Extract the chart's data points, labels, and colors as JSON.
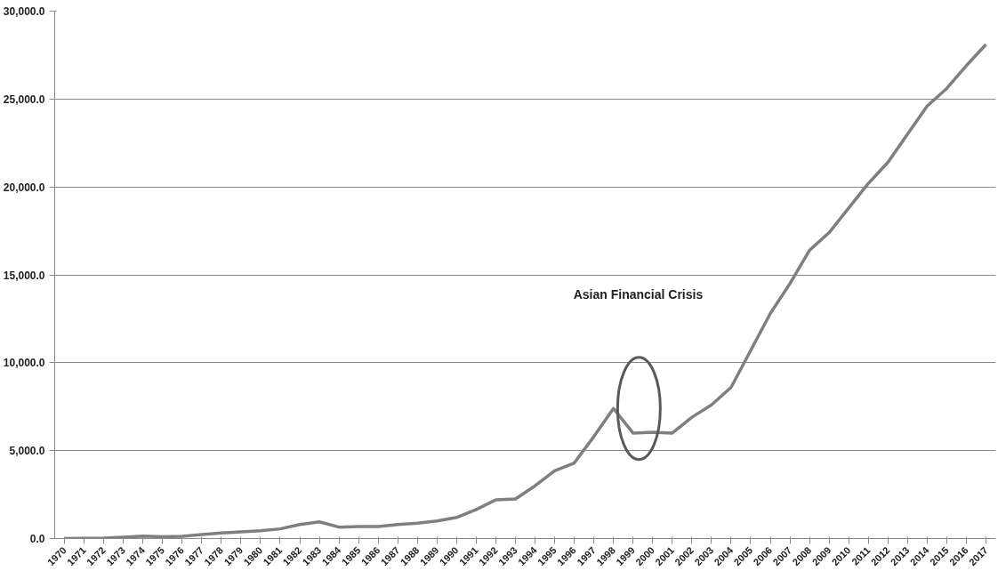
{
  "chart_data": {
    "type": "line",
    "categories": [
      "1970",
      "1971",
      "1972",
      "1973",
      "1974",
      "1975",
      "1976",
      "1977",
      "1978",
      "1979",
      "1980",
      "1981",
      "1982",
      "1983",
      "1984",
      "1985",
      "1986",
      "1987",
      "1988",
      "1989",
      "1990",
      "1991",
      "1992",
      "1993",
      "1994",
      "1995",
      "1996",
      "1997",
      "1998",
      "1999",
      "2000",
      "2001",
      "2002",
      "2003",
      "2004",
      "2005",
      "2006",
      "2007",
      "2008",
      "2009",
      "2010",
      "2011",
      "2012",
      "2013",
      "2014",
      "2015",
      "2016",
      "2017"
    ],
    "series": [
      {
        "color": "#7f7f7f",
        "values": [
          0,
          10,
          20,
          80,
          140,
          100,
          130,
          230,
          320,
          380,
          440,
          550,
          800,
          950,
          650,
          680,
          680,
          800,
          870,
          1000,
          1200,
          1650,
          2200,
          2250,
          3000,
          3850,
          4300,
          5800,
          7400,
          6000,
          6050,
          6000,
          6900,
          7600,
          8600,
          10700,
          12800,
          14500,
          16400,
          17400,
          18800,
          20200,
          21400,
          23000,
          24600,
          25600,
          26900,
          28100
        ]
      }
    ],
    "ylim": [
      0,
      30000
    ],
    "yticks": [
      {
        "value": 0,
        "label": "0.0"
      },
      {
        "value": 5000,
        "label": "5,000.0"
      },
      {
        "value": 10000,
        "label": "10,000.0"
      },
      {
        "value": 15000,
        "label": "15,000.0"
      },
      {
        "value": 20000,
        "label": "20,000.0"
      },
      {
        "value": 25000,
        "label": "25,000.0"
      },
      {
        "value": 30000,
        "label": "30,000.0"
      }
    ],
    "grid": "y",
    "marker": "none",
    "line_style": "solid",
    "annotations": [
      "Asian Financial Crisis"
    ]
  }
}
